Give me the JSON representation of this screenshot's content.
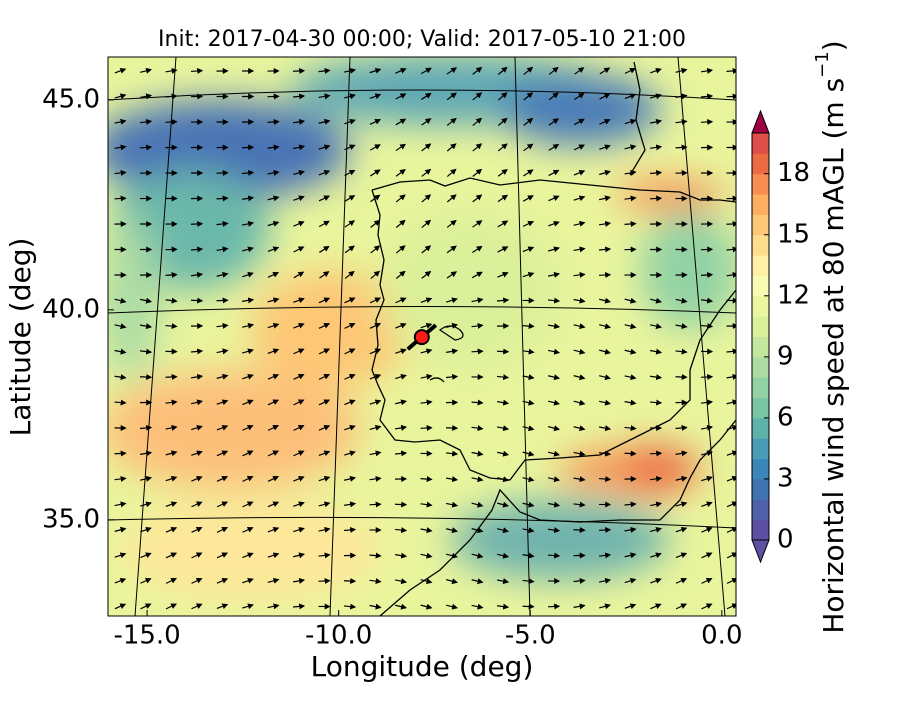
{
  "chart_data": {
    "type": "map",
    "title": "Init: 2017-04-30 00:00; Valid: 2017-05-10 21:00",
    "x_label": "Longitude (deg)",
    "y_label": "Latitude (deg)",
    "xlim": [
      -16.02,
      0.37
    ],
    "ylim": [
      32.71,
      46.02
    ],
    "xticks": [
      {
        "value": -15,
        "label": "-15.0"
      },
      {
        "value": -10,
        "label": "-10.0"
      },
      {
        "value": -5,
        "label": "-5.0"
      },
      {
        "value": 0,
        "label": "0.0"
      }
    ],
    "yticks": [
      {
        "value": 35,
        "label": "35.0"
      },
      {
        "value": 40,
        "label": "40.0"
      },
      {
        "value": 45,
        "label": "45.0"
      }
    ],
    "marker": {
      "x": -7.83,
      "y": 39.35,
      "color": "#ff1a1a"
    },
    "colorbar": {
      "label": "Horizontal wind speed at 80 mAGL (m s",
      "label_exponent": "−1",
      "label_end": ")",
      "lim": [
        0,
        20
      ],
      "ticks": [
        0,
        3,
        6,
        9,
        12,
        15,
        18
      ],
      "colors": [
        "#5e4fa2",
        "#4f61aa",
        "#4173b3",
        "#3a86b9",
        "#4a9bb5",
        "#5fb2a9",
        "#79c6a5",
        "#93d2a4",
        "#acdca4",
        "#c3e79f",
        "#daf09a",
        "#ebf6a0",
        "#f7fcb2",
        "#fff0a6",
        "#fedd8d",
        "#fdc776",
        "#fdae61",
        "#f88d52",
        "#ed6b43",
        "#de4f4a"
      ],
      "over_color": "#9e0142",
      "under_color": "#5e4fa2"
    }
  }
}
